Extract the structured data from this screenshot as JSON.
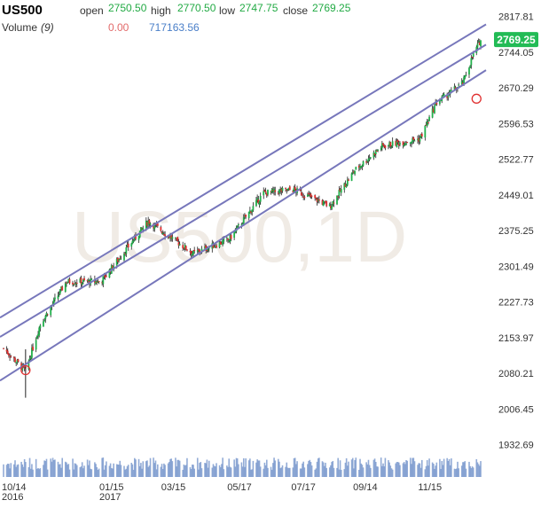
{
  "header": {
    "symbol": "US500",
    "open_label": "open",
    "open_value": "2750.50",
    "high_label": "high",
    "high_value": "2770.50",
    "low_label": "low",
    "low_value": "2747.75",
    "close_label": "close",
    "close_value": "2769.25",
    "volume_label": "Volume",
    "volume_period": "(9)",
    "volume_ma_value": "0.00",
    "volume_value": "717163.56"
  },
  "watermark": "US500,1D",
  "last_price_badge": "2769.25",
  "colors": {
    "up": "#22b14c",
    "down": "#e03030",
    "channel": "#7777bb",
    "volume": "#6e8fc8",
    "badge": "#22bb55",
    "marker": "#e03030"
  },
  "chart_data": {
    "type": "candlestick",
    "symbol": "US500",
    "timeframe": "1D",
    "x_tick_labels": [
      {
        "label": "10/14",
        "sub": "2016",
        "date": "2016-10-14"
      },
      {
        "label": "01/15",
        "sub": "2017",
        "date": "2017-01-15"
      },
      {
        "label": "03/15",
        "sub": "",
        "date": "2017-03-15"
      },
      {
        "label": "05/17",
        "sub": "",
        "date": "2017-05-17"
      },
      {
        "label": "07/17",
        "sub": "",
        "date": "2017-07-17"
      },
      {
        "label": "09/14",
        "sub": "",
        "date": "2017-09-14"
      },
      {
        "label": "11/15",
        "sub": "",
        "date": "2017-11-15"
      }
    ],
    "y_tick_labels": [
      "2817.81",
      "2744.05",
      "2670.29",
      "2596.53",
      "2522.77",
      "2449.01",
      "2375.25",
      "2301.49",
      "2227.73",
      "2153.97",
      "2080.21",
      "2006.45",
      "1932.69"
    ],
    "ylim": [
      1917.5,
      2830
    ],
    "series": [
      {
        "name": "price",
        "close": [
          {
            "date": "2016-10-14",
            "value": 2132
          },
          {
            "date": "2016-11-04",
            "value": 2085
          },
          {
            "date": "2016-11-18",
            "value": 2182
          },
          {
            "date": "2016-12-13",
            "value": 2270
          },
          {
            "date": "2017-01-15",
            "value": 2270
          },
          {
            "date": "2017-03-01",
            "value": 2395
          },
          {
            "date": "2017-04-13",
            "value": 2328
          },
          {
            "date": "2017-05-17",
            "value": 2357
          },
          {
            "date": "2017-06-19",
            "value": 2453
          },
          {
            "date": "2017-07-17",
            "value": 2460
          },
          {
            "date": "2017-08-10",
            "value": 2438
          },
          {
            "date": "2017-08-21",
            "value": 2425
          },
          {
            "date": "2017-09-14",
            "value": 2500
          },
          {
            "date": "2017-10-10",
            "value": 2550
          },
          {
            "date": "2017-11-15",
            "value": 2565
          },
          {
            "date": "2017-12-01",
            "value": 2640
          },
          {
            "date": "2017-12-26",
            "value": 2680
          },
          {
            "date": "2018-01-05",
            "value": 2740
          },
          {
            "date": "2018-01-12",
            "value": 2769.25
          }
        ]
      }
    ],
    "channel_lines": [
      {
        "name": "upper",
        "from": {
          "date": "2016-10-14",
          "value": 2200
        },
        "to": {
          "date": "2018-01-12",
          "value": 2795
        }
      },
      {
        "name": "middle",
        "from": {
          "date": "2016-10-14",
          "value": 2160
        },
        "to": {
          "date": "2018-01-12",
          "value": 2753
        }
      },
      {
        "name": "lower",
        "from": {
          "date": "2016-10-14",
          "value": 2070
        },
        "to": {
          "date": "2018-01-12",
          "value": 2700
        }
      }
    ],
    "markers": [
      {
        "date": "2016-11-04",
        "value": 2087
      },
      {
        "date": "2018-01-08",
        "value": 2648
      }
    ],
    "grid": false,
    "legend": "top-left"
  }
}
